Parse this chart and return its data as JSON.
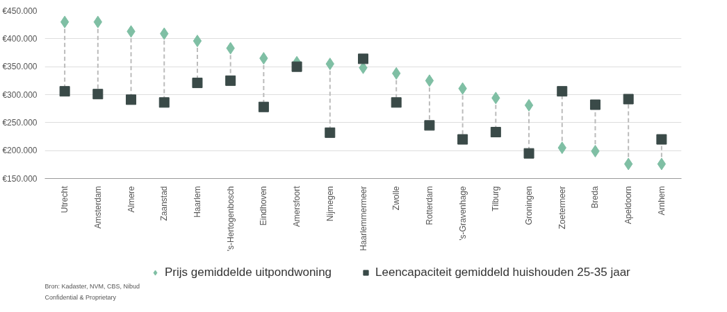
{
  "chart_data": {
    "type": "scatter",
    "categories": [
      "Utrecht",
      "Amsterdam",
      "Almere",
      "Zaanstad",
      "Haarlem",
      "'s-Hertogenbosch",
      "Eindhoven",
      "Amersfoort",
      "Nijmegen",
      "Haarlemmermeer",
      "Zwolle",
      "Rotterdam",
      "'s-Gravenhage",
      "Tilburg",
      "Groningen",
      "Zoetermeer",
      "Breda",
      "Apeldoorn",
      "Arnhem"
    ],
    "series": [
      {
        "name": "Prijs gemiddelde uitpondwoning",
        "color": "#7fbfa4",
        "marker": "diamond",
        "values": [
          430000,
          430000,
          413000,
          409000,
          396000,
          383000,
          365000,
          358000,
          355000,
          348000,
          338000,
          325000,
          311000,
          294000,
          281000,
          205000,
          199000,
          176000,
          176000
        ]
      },
      {
        "name": "Leencapaciteit gemiddeld huishouden 25-35 jaar",
        "color": "#3a4a48",
        "marker": "square",
        "values": [
          306000,
          301000,
          291000,
          286000,
          321000,
          325000,
          278000,
          350000,
          232000,
          364000,
          286000,
          245000,
          220000,
          233000,
          195000,
          306000,
          282000,
          292000,
          220000
        ]
      }
    ],
    "ylim": [
      150000,
      450000
    ],
    "yticks": [
      {
        "value": 150000,
        "label": "€150.000"
      },
      {
        "value": 200000,
        "label": "€200.000"
      },
      {
        "value": 250000,
        "label": "€250.000"
      },
      {
        "value": 300000,
        "label": "€300.000"
      },
      {
        "value": 350000,
        "label": "€350.000"
      },
      {
        "value": 400000,
        "label": "€400.000"
      },
      {
        "value": 450000,
        "label": "€450.000"
      }
    ],
    "grid": "y",
    "legend": "bottom",
    "annotations": [
      "Bron: Kadaster, NVM, CBS, Nibud",
      "Confidential & Proprietary"
    ]
  }
}
